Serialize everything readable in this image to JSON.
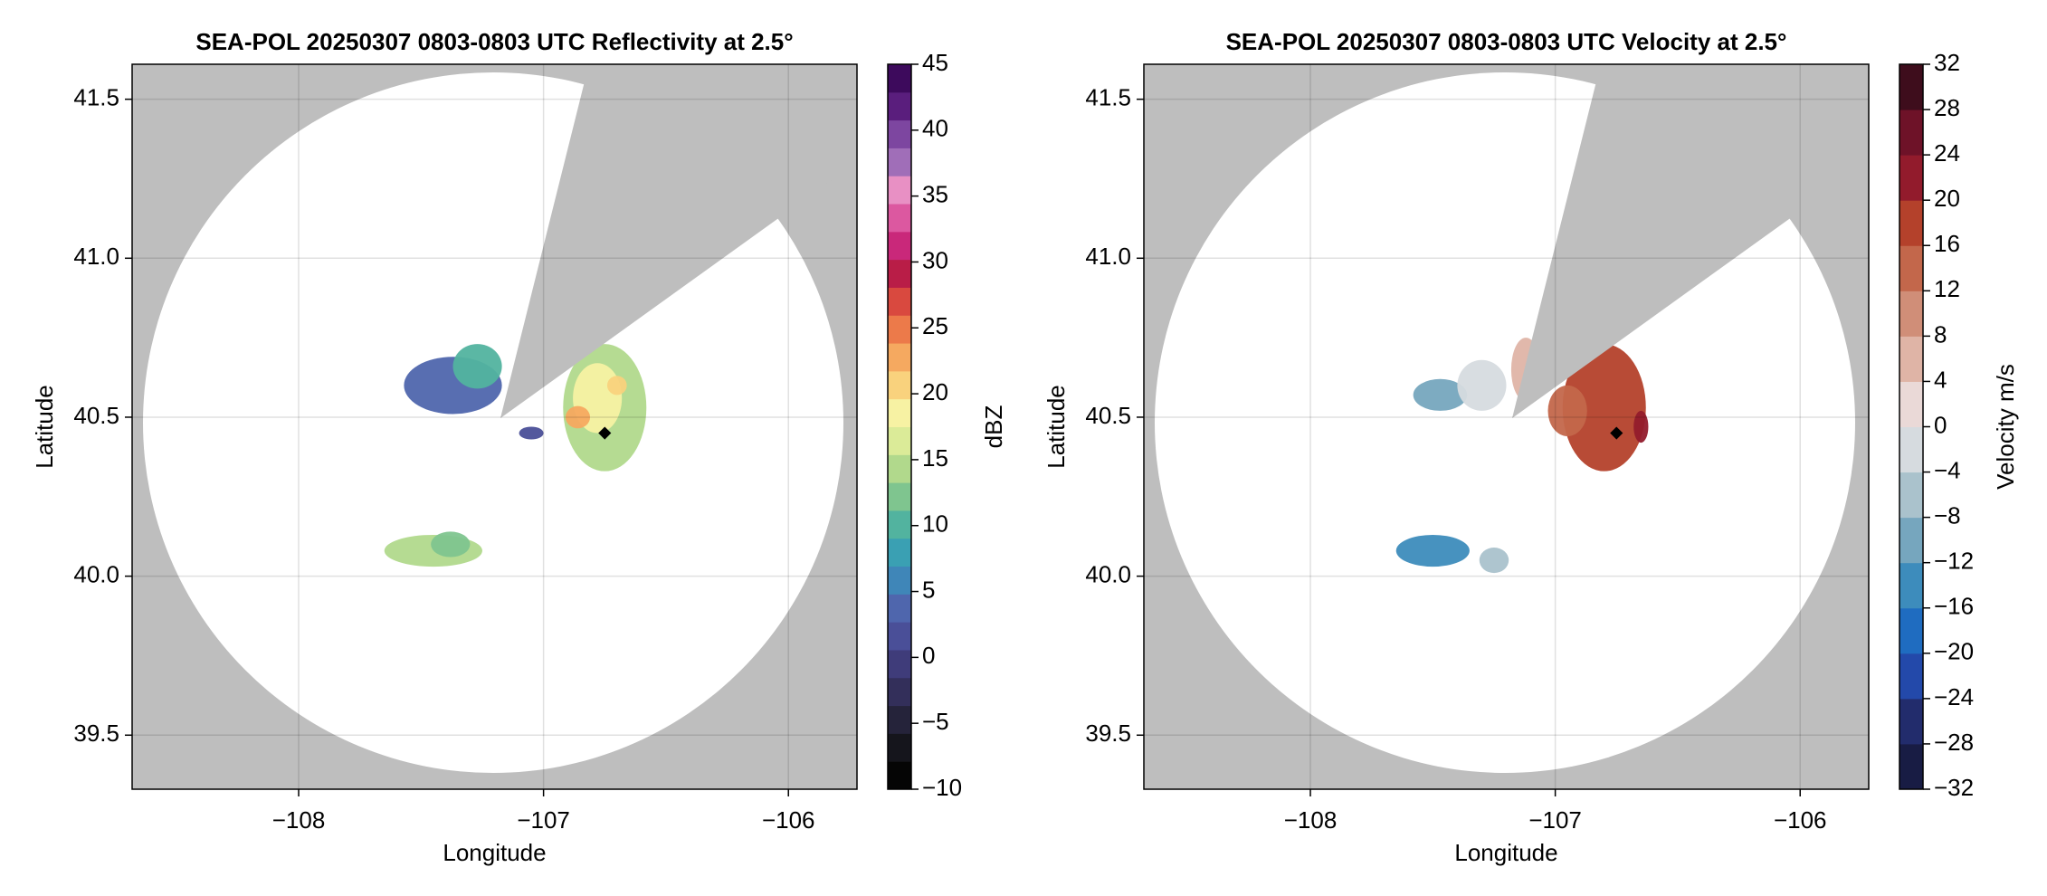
{
  "chart_data": [
    {
      "type": "radar-ppi",
      "title": "SEA-POL 20250307 0803-0803 UTC Reflectivity at 2.5°",
      "xlabel": "Longitude",
      "ylabel": "Latitude",
      "xlim": [
        -108.68,
        -105.72
      ],
      "ylim": [
        39.33,
        41.61
      ],
      "xticks": [
        {
          "value": -108,
          "label": "−108"
        },
        {
          "value": -107,
          "label": "−107"
        },
        {
          "value": -106,
          "label": "−106"
        }
      ],
      "yticks": [
        39.5,
        {
          "value": 40.0,
          "label": "40.0"
        },
        40.5,
        {
          "value": 41.0,
          "label": "41.0"
        },
        41.5
      ],
      "grid": true,
      "colorbar": {
        "label": "dBZ",
        "lim": [
          -10,
          45
        ],
        "ticks": [
          {
            "value": -10,
            "label": "−10"
          },
          {
            "value": -5,
            "label": "−5"
          },
          0,
          5,
          10,
          15,
          20,
          25,
          30,
          35,
          40,
          45
        ],
        "colors": [
          "#050505",
          "#15151c",
          "#25233a",
          "#332f5a",
          "#3f3c7a",
          "#4a4f98",
          "#4f66ad",
          "#3f86b8",
          "#3aa0b3",
          "#52b39f",
          "#7fc58f",
          "#b1d98c",
          "#dbeb98",
          "#f7f2a3",
          "#f9d27d",
          "#f5a960",
          "#ec7a4a",
          "#d9493f",
          "#b91d47",
          "#c9287a",
          "#dc58a0",
          "#e890c4",
          "#a06eb8",
          "#7d46a0",
          "#5a1e7d",
          "#3d0a5c"
        ]
      }
    },
    {
      "type": "radar-ppi",
      "title": "SEA-POL 20250307 0803-0803 UTC Velocity at 2.5°",
      "xlabel": "Longitude",
      "ylabel": "Latitude",
      "xlim": [
        -108.68,
        -105.72
      ],
      "ylim": [
        39.33,
        41.61
      ],
      "xticks": [
        {
          "value": -108,
          "label": "−108"
        },
        {
          "value": -107,
          "label": "−107"
        },
        {
          "value": -106,
          "label": "−106"
        }
      ],
      "yticks": [
        39.5,
        {
          "value": 40.0,
          "label": "40.0"
        },
        40.5,
        {
          "value": 41.0,
          "label": "41.0"
        },
        41.5
      ],
      "grid": true,
      "colorbar": {
        "label": "Velocity m/s",
        "lim": [
          -32,
          32
        ],
        "ticks": [
          {
            "value": -32,
            "label": "−32"
          },
          {
            "value": -28,
            "label": "−28"
          },
          {
            "value": -24,
            "label": "−24"
          },
          {
            "value": -20,
            "label": "−20"
          },
          {
            "value": -16,
            "label": "−16"
          },
          {
            "value": -12,
            "label": "−12"
          },
          {
            "value": -8,
            "label": "−8"
          },
          {
            "value": -4,
            "label": "−4"
          },
          0,
          4,
          8,
          12,
          16,
          20,
          24,
          28,
          32
        ],
        "colors": [
          "#181c44",
          "#222c6c",
          "#2349aa",
          "#1f6cc0",
          "#3d8cbc",
          "#76a6be",
          "#aac2cc",
          "#d6dbdf",
          "#ead9d7",
          "#dfb4a6",
          "#d08e78",
          "#c3674b",
          "#b4412b",
          "#921b2c",
          "#6e1228",
          "#3e0d1c"
        ]
      }
    }
  ]
}
